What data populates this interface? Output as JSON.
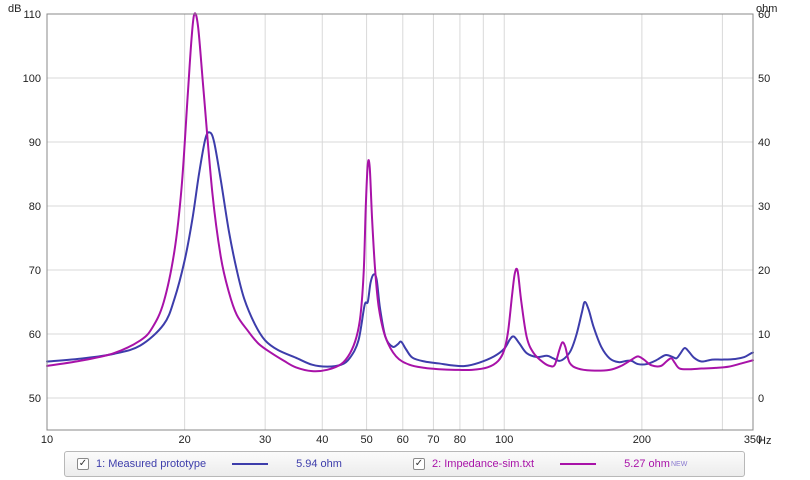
{
  "chart_data": {
    "type": "line",
    "x_scale": "log",
    "xlim": [
      10,
      350
    ],
    "x_ticks": [
      10,
      20,
      30,
      40,
      50,
      60,
      70,
      80,
      90,
      100,
      200,
      300,
      350
    ],
    "x_tick_labels": [
      "10",
      "20",
      "30",
      "40",
      "50",
      "60",
      "70",
      "80",
      "",
      "100",
      "200",
      "",
      "350"
    ],
    "x_unit": "Hz",
    "y_left": {
      "unit": "dB",
      "lim": [
        45,
        110
      ],
      "ticks": [
        50,
        60,
        70,
        80,
        90,
        100,
        110
      ]
    },
    "y_right": {
      "unit": "ohm",
      "lim": [
        -5,
        60
      ],
      "ticks": [
        0,
        10,
        20,
        30,
        40,
        50,
        60
      ]
    },
    "grid": true,
    "series": [
      {
        "name": "1: Measured prototype",
        "color": "#3d3dab",
        "axis": "left",
        "points": [
          [
            10,
            55.7
          ],
          [
            12,
            56.2
          ],
          [
            14,
            56.9
          ],
          [
            16,
            58.2
          ],
          [
            18,
            61.5
          ],
          [
            19,
            65.5
          ],
          [
            20,
            71.5
          ],
          [
            20.8,
            78
          ],
          [
            21.5,
            85
          ],
          [
            22.2,
            90.5
          ],
          [
            22.7,
            91.5
          ],
          [
            23.2,
            90
          ],
          [
            24,
            84
          ],
          [
            25,
            76
          ],
          [
            26,
            70
          ],
          [
            27,
            65.5
          ],
          [
            28.5,
            61.5
          ],
          [
            30,
            59
          ],
          [
            32,
            57.5
          ],
          [
            35,
            56.3
          ],
          [
            38,
            55.2
          ],
          [
            41,
            54.9
          ],
          [
            44,
            55.2
          ],
          [
            46,
            56.3
          ],
          [
            48,
            59
          ],
          [
            49.5,
            64.5
          ],
          [
            50.3,
            65
          ],
          [
            51,
            68
          ],
          [
            51.8,
            69.3
          ],
          [
            52.6,
            68.5
          ],
          [
            53.5,
            64
          ],
          [
            55,
            59.5
          ],
          [
            57,
            58
          ],
          [
            58.5,
            58.4
          ],
          [
            59.5,
            58.8
          ],
          [
            61,
            57.6
          ],
          [
            63,
            56.3
          ],
          [
            67,
            55.7
          ],
          [
            72,
            55.4
          ],
          [
            77,
            55.1
          ],
          [
            82,
            55.0
          ],
          [
            88,
            55.5
          ],
          [
            95,
            56.5
          ],
          [
            100,
            57.7
          ],
          [
            103,
            59.2
          ],
          [
            105,
            59.6
          ],
          [
            108,
            58.5
          ],
          [
            112,
            57
          ],
          [
            118,
            56.4
          ],
          [
            124,
            56.6
          ],
          [
            128,
            56.2
          ],
          [
            132,
            55.8
          ],
          [
            136,
            56.3
          ],
          [
            140,
            57.5
          ],
          [
            144,
            60
          ],
          [
            148,
            63.5
          ],
          [
            150,
            65
          ],
          [
            153,
            63.8
          ],
          [
            157,
            61
          ],
          [
            163,
            58
          ],
          [
            170,
            56.2
          ],
          [
            178,
            55.6
          ],
          [
            185,
            55.8
          ],
          [
            190,
            55.8
          ],
          [
            196,
            55.3
          ],
          [
            205,
            55.3
          ],
          [
            215,
            55.9
          ],
          [
            225,
            56.7
          ],
          [
            232,
            56.5
          ],
          [
            238,
            56.2
          ],
          [
            243,
            57
          ],
          [
            248,
            57.8
          ],
          [
            253,
            57.3
          ],
          [
            260,
            56.3
          ],
          [
            270,
            55.7
          ],
          [
            285,
            56
          ],
          [
            300,
            56
          ],
          [
            320,
            56.1
          ],
          [
            335,
            56.4
          ],
          [
            345,
            56.9
          ],
          [
            350,
            57.1
          ]
        ]
      },
      {
        "name": "2: Impedance-sim.txt",
        "color": "#a812a8",
        "axis": "right",
        "points": [
          [
            10,
            5
          ],
          [
            12,
            5.9
          ],
          [
            14,
            7
          ],
          [
            16,
            9
          ],
          [
            17,
            11
          ],
          [
            18,
            15
          ],
          [
            19,
            23
          ],
          [
            19.7,
            33
          ],
          [
            20.3,
            47
          ],
          [
            20.7,
            56
          ],
          [
            21,
            60
          ],
          [
            21.4,
            58
          ],
          [
            22,
            48
          ],
          [
            23,
            32
          ],
          [
            24,
            22
          ],
          [
            25,
            16.5
          ],
          [
            26,
            13
          ],
          [
            27.5,
            10.5
          ],
          [
            29,
            8.5
          ],
          [
            31,
            7
          ],
          [
            33,
            5.8
          ],
          [
            35,
            4.8
          ],
          [
            38,
            4.2
          ],
          [
            41,
            4.4
          ],
          [
            44,
            5.3
          ],
          [
            46,
            7
          ],
          [
            47.5,
            9.5
          ],
          [
            48.5,
            13
          ],
          [
            49.3,
            20
          ],
          [
            49.8,
            30
          ],
          [
            50.3,
            36.5
          ],
          [
            50.8,
            36
          ],
          [
            51.4,
            28
          ],
          [
            52.2,
            20
          ],
          [
            53.2,
            14
          ],
          [
            55,
            9.5
          ],
          [
            58,
            6.5
          ],
          [
            62,
            5.2
          ],
          [
            67,
            4.7
          ],
          [
            72,
            4.5
          ],
          [
            78,
            4.4
          ],
          [
            85,
            4.4
          ],
          [
            92,
            4.8
          ],
          [
            97,
            5.8
          ],
          [
            100,
            7.5
          ],
          [
            102,
            10.5
          ],
          [
            104,
            16
          ],
          [
            105.5,
            19.5
          ],
          [
            107,
            19.8
          ],
          [
            109,
            15
          ],
          [
            112,
            9.5
          ],
          [
            116,
            7
          ],
          [
            122,
            5.5
          ],
          [
            126,
            5
          ],
          [
            129,
            5.2
          ],
          [
            132,
            7.5
          ],
          [
            134,
            8.7
          ],
          [
            136,
            8
          ],
          [
            139,
            5.5
          ],
          [
            145,
            4.6
          ],
          [
            155,
            4.3
          ],
          [
            170,
            4.4
          ],
          [
            180,
            5
          ],
          [
            190,
            6
          ],
          [
            196,
            6.5
          ],
          [
            202,
            6
          ],
          [
            210,
            5.1
          ],
          [
            220,
            5
          ],
          [
            227,
            5.8
          ],
          [
            232,
            6.2
          ],
          [
            236,
            5.5
          ],
          [
            242,
            4.6
          ],
          [
            255,
            4.5
          ],
          [
            270,
            4.6
          ],
          [
            290,
            4.7
          ],
          [
            310,
            4.9
          ],
          [
            330,
            5.4
          ],
          [
            350,
            5.9
          ]
        ]
      }
    ]
  },
  "legend": {
    "items": [
      {
        "checked": "✓",
        "label": "1: Measured prototype",
        "value": "5.94 ohm",
        "color": "#3d3dab"
      },
      {
        "checked": "✓",
        "label": "2: Impedance-sim.txt",
        "value": "5.27 ohm",
        "badge": "NEW",
        "color": "#a812a8"
      }
    ]
  }
}
